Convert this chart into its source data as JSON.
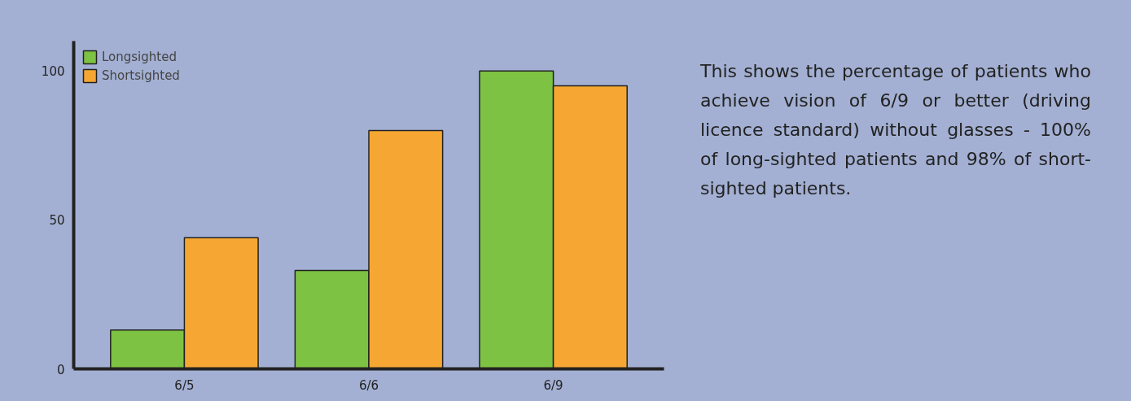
{
  "chart_data": {
    "type": "bar",
    "categories": [
      "6/5",
      "6/6",
      "6/9"
    ],
    "series": [
      {
        "name": "Longsighted",
        "color": "#7dc242",
        "values": [
          13,
          33,
          100
        ]
      },
      {
        "name": "Shortsighted",
        "color": "#f6a733",
        "values": [
          44,
          80,
          95
        ]
      }
    ],
    "ylim": [
      0,
      110
    ],
    "yticks": [
      0,
      50,
      100
    ],
    "grid": false,
    "legend": "top left",
    "annotations": [
      "This shows the percentage of patients who achieve vision of 6/9 or better (driving licence standard) without glasses - 100% of long-sighted patients and 98% of short-sighted patients."
    ]
  }
}
